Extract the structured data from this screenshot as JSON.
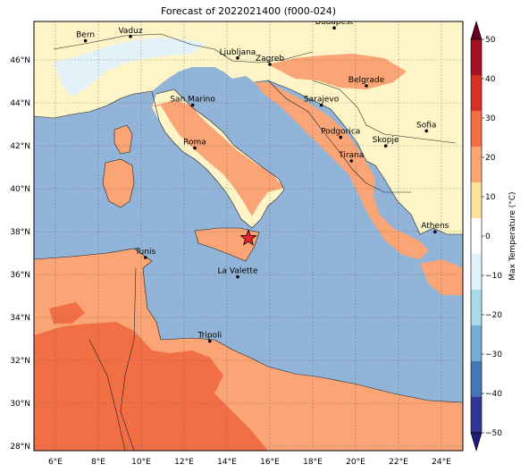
{
  "title": "Forecast of 2022021400 (f000-024)",
  "map": {
    "lon_range": [
      5,
      25
    ],
    "lat_range": [
      27.8,
      47.8
    ],
    "lon_ticks": [
      "6°E",
      "8°E",
      "10°E",
      "12°E",
      "14°E",
      "16°E",
      "18°E",
      "20°E",
      "22°E",
      "24°E"
    ],
    "lat_ticks": [
      "28°N",
      "30°N",
      "32°N",
      "34°N",
      "36°N",
      "38°N",
      "40°N",
      "42°N",
      "44°N",
      "46°N"
    ],
    "gridlines": true,
    "colors": {
      "sea": "#91b4d8",
      "cool_land": "#fdf5c7",
      "warm_10_20": "#fba476",
      "warm_20_30": "#f26f45",
      "cold_0_10": "#e2f2f8"
    },
    "cities": [
      {
        "name": "Bern",
        "lon": 7.4,
        "lat": 46.9
      },
      {
        "name": "Vaduz",
        "lon": 9.5,
        "lat": 47.1
      },
      {
        "name": "Budapest",
        "lon": 19.0,
        "lat": 47.5
      },
      {
        "name": "Ljubljana",
        "lon": 14.5,
        "lat": 46.1
      },
      {
        "name": "Zagreb",
        "lon": 16.0,
        "lat": 45.8
      },
      {
        "name": "Belgrade",
        "lon": 20.5,
        "lat": 44.8
      },
      {
        "name": "San Marino",
        "lon": 12.4,
        "lat": 43.9
      },
      {
        "name": "Sarajevo",
        "lon": 18.4,
        "lat": 43.9
      },
      {
        "name": "Sofia",
        "lon": 23.3,
        "lat": 42.7
      },
      {
        "name": "Podgorica",
        "lon": 19.3,
        "lat": 42.4
      },
      {
        "name": "Skopje",
        "lon": 21.4,
        "lat": 42.0
      },
      {
        "name": "Roma",
        "lon": 12.5,
        "lat": 41.9
      },
      {
        "name": "Tirana",
        "lon": 19.8,
        "lat": 41.3
      },
      {
        "name": "Athens",
        "lon": 23.7,
        "lat": 38.0
      },
      {
        "name": "Tunis",
        "lon": 10.2,
        "lat": 36.8
      },
      {
        "name": "La Valette",
        "lon": 14.5,
        "lat": 35.9
      },
      {
        "name": "Tripoli",
        "lon": 13.2,
        "lat": 32.9
      }
    ],
    "star_marker": {
      "lon": 15.0,
      "lat": 37.7
    }
  },
  "colorbar": {
    "label": "Max Temperature (°C)",
    "ticks": [
      "50",
      "40",
      "30",
      "20",
      "10",
      "0",
      "−10",
      "−20",
      "−30",
      "−40",
      "−50"
    ],
    "colors": [
      "#67001f",
      "#a50f22",
      "#d73027",
      "#f46d43",
      "#fca674",
      "#fee29b",
      "#ffffff",
      "#e0f3f8",
      "#abd9e9",
      "#74add1",
      "#4575b4",
      "#313695",
      "#1f1f7a"
    ]
  }
}
